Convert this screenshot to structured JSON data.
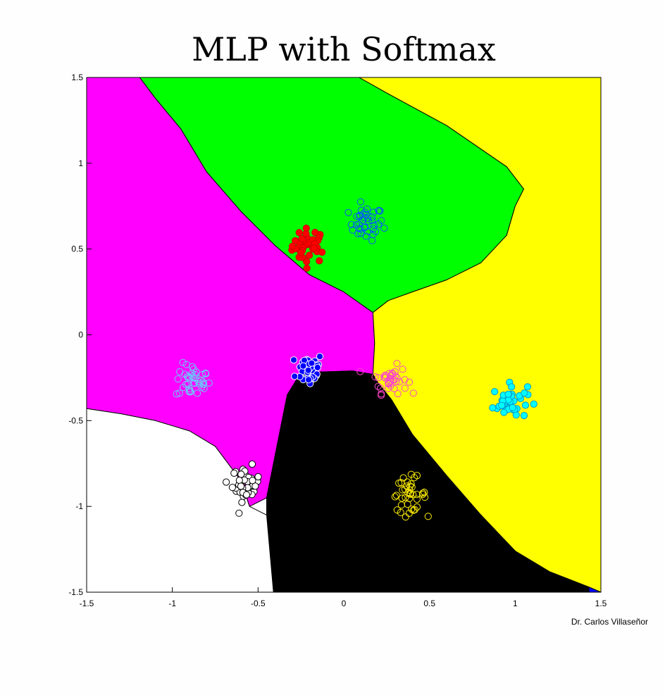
{
  "figure": {
    "title": "MLP with Softmax",
    "credit": "Dr. Carlos Villaseñor"
  },
  "chart_data": {
    "type": "scatter",
    "title": "MLP with Softmax",
    "xlabel": "",
    "ylabel": "",
    "xlim": [
      -1.5,
      1.5
    ],
    "ylim": [
      -1.5,
      1.5
    ],
    "x_ticks": [
      "-1.5",
      "-1",
      "-0.5",
      "0",
      "0.5",
      "1",
      "1.5"
    ],
    "y_ticks": [
      "1.5",
      "1",
      "0.5",
      "0",
      "-0.5",
      "-1",
      "-1.5"
    ],
    "grid": false,
    "legend": "none",
    "regions": [
      {
        "color": "#ff00ff",
        "polygon": [
          [
            -1.5,
            1.5
          ],
          [
            -1.19,
            1.5
          ],
          [
            -1.1,
            1.38
          ],
          [
            -0.95,
            1.2
          ],
          [
            -0.8,
            0.95
          ],
          [
            -0.6,
            0.72
          ],
          [
            -0.4,
            0.52
          ],
          [
            -0.2,
            0.35
          ],
          [
            0,
            0.25
          ],
          [
            0.17,
            0.13
          ],
          [
            0.18,
            -0.05
          ],
          [
            0.17,
            -0.23
          ],
          [
            0.05,
            -0.21
          ],
          [
            -0.25,
            -0.22
          ],
          [
            -0.33,
            -0.35
          ],
          [
            -0.38,
            -0.6
          ],
          [
            -0.45,
            -0.95
          ],
          [
            -0.55,
            -1.0
          ],
          [
            -0.6,
            -0.85
          ],
          [
            -0.75,
            -0.65
          ],
          [
            -0.9,
            -0.56
          ],
          [
            -1.1,
            -0.5
          ],
          [
            -1.3,
            -0.46
          ],
          [
            -1.5,
            -0.43
          ]
        ]
      },
      {
        "color": "#00ff00",
        "polygon": [
          [
            -1.19,
            1.5
          ],
          [
            0.09,
            1.5
          ],
          [
            0.25,
            1.41
          ],
          [
            0.6,
            1.22
          ],
          [
            0.95,
            0.98
          ],
          [
            1.05,
            0.85
          ],
          [
            1.0,
            0.75
          ],
          [
            0.95,
            0.58
          ],
          [
            0.8,
            0.42
          ],
          [
            0.6,
            0.32
          ],
          [
            0.4,
            0.25
          ],
          [
            0.26,
            0.2
          ],
          [
            0.17,
            0.13
          ],
          [
            0,
            0.25
          ],
          [
            -0.2,
            0.35
          ],
          [
            -0.4,
            0.52
          ],
          [
            -0.6,
            0.72
          ],
          [
            -0.8,
            0.95
          ],
          [
            -0.95,
            1.2
          ],
          [
            -1.1,
            1.38
          ]
        ]
      },
      {
        "color": "#ffff00",
        "polygon": [
          [
            0.09,
            1.5
          ],
          [
            1.5,
            1.5
          ],
          [
            1.5,
            -1.5
          ],
          [
            1.43,
            -1.47
          ],
          [
            1.2,
            -1.38
          ],
          [
            1.0,
            -1.26
          ],
          [
            0.8,
            -1.05
          ],
          [
            0.6,
            -0.82
          ],
          [
            0.4,
            -0.58
          ],
          [
            0.28,
            -0.38
          ],
          [
            0.2,
            -0.28
          ],
          [
            0.17,
            -0.23
          ],
          [
            0.18,
            -0.05
          ],
          [
            0.17,
            0.13
          ],
          [
            0.26,
            0.2
          ],
          [
            0.4,
            0.25
          ],
          [
            0.6,
            0.32
          ],
          [
            0.8,
            0.42
          ],
          [
            0.95,
            0.58
          ],
          [
            1.0,
            0.75
          ],
          [
            1.05,
            0.85
          ],
          [
            0.95,
            0.98
          ],
          [
            0.6,
            1.22
          ],
          [
            0.25,
            1.41
          ]
        ]
      },
      {
        "color": "#000000",
        "polygon": [
          [
            -0.41,
            -1.5
          ],
          [
            1.43,
            -1.5
          ],
          [
            1.43,
            -1.47
          ],
          [
            1.2,
            -1.38
          ],
          [
            1.0,
            -1.26
          ],
          [
            0.8,
            -1.05
          ],
          [
            0.6,
            -0.82
          ],
          [
            0.4,
            -0.58
          ],
          [
            0.28,
            -0.38
          ],
          [
            0.2,
            -0.28
          ],
          [
            0.17,
            -0.23
          ],
          [
            0.05,
            -0.21
          ],
          [
            -0.25,
            -0.22
          ],
          [
            -0.33,
            -0.35
          ],
          [
            -0.38,
            -0.6
          ],
          [
            -0.45,
            -0.95
          ],
          [
            -0.45,
            -1.05
          ]
        ]
      },
      {
        "color": "#ffffff",
        "polygon": [
          [
            -1.5,
            -0.43
          ],
          [
            -1.3,
            -0.46
          ],
          [
            -1.1,
            -0.5
          ],
          [
            -0.9,
            -0.56
          ],
          [
            -0.75,
            -0.65
          ],
          [
            -0.6,
            -0.85
          ],
          [
            -0.55,
            -1.0
          ],
          [
            -0.45,
            -1.05
          ],
          [
            -0.41,
            -1.5
          ],
          [
            -1.5,
            -1.5
          ]
        ]
      },
      {
        "color": "#0000ff",
        "polygon": [
          [
            1.43,
            -1.5
          ],
          [
            1.5,
            -1.5
          ],
          [
            1.43,
            -1.47
          ]
        ]
      }
    ],
    "series": [
      {
        "center": [
          -0.2,
          0.52
        ],
        "spread": [
          0.05,
          0.05
        ],
        "count": 40,
        "fill": "#ff0000",
        "edge": "#cc0000"
      },
      {
        "center": [
          0.13,
          0.65
        ],
        "spread": [
          0.05,
          0.05
        ],
        "count": 40,
        "fill": "none",
        "edge": "#0055ff"
      },
      {
        "center": [
          -0.88,
          -0.27
        ],
        "spread": [
          0.05,
          0.05
        ],
        "count": 40,
        "fill": "none",
        "edge": "#66ccff"
      },
      {
        "center": [
          -0.2,
          -0.2
        ],
        "spread": [
          0.04,
          0.05
        ],
        "count": 40,
        "fill": "#0000ff",
        "edge": "#ffffff"
      },
      {
        "center": [
          0.27,
          -0.26
        ],
        "spread": [
          0.05,
          0.04
        ],
        "count": 40,
        "fill": "none",
        "edge": "#ff44cc"
      },
      {
        "center": [
          0.97,
          -0.39
        ],
        "spread": [
          0.05,
          0.05
        ],
        "count": 40,
        "fill": "#00ffff",
        "edge": "#0099cc"
      },
      {
        "center": [
          -0.57,
          -0.87
        ],
        "spread": [
          0.04,
          0.05
        ],
        "count": 40,
        "fill": "#ffffff",
        "edge": "#000000"
      },
      {
        "center": [
          0.38,
          -0.93
        ],
        "spread": [
          0.05,
          0.05
        ],
        "count": 40,
        "fill": "none",
        "edge": "#ffee00"
      }
    ]
  }
}
